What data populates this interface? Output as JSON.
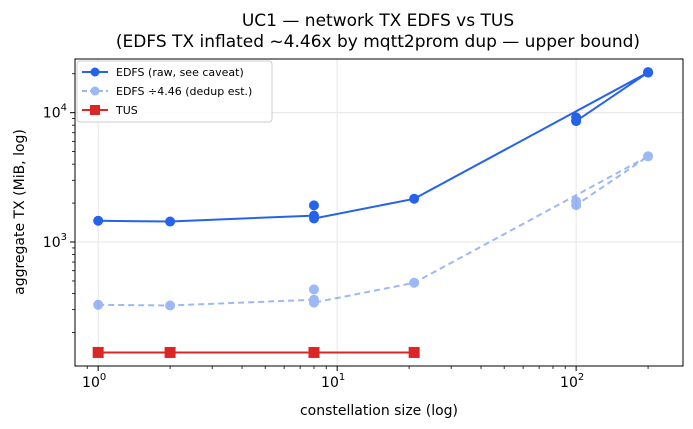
{
  "chart_data": {
    "type": "line",
    "title_line1": "UC1 — network TX EDFS vs TUS",
    "title_line2": "(EDFS TX inflated ~4.46x by mqtt2prom dup — upper bound)",
    "xlabel": "constellation size (log)",
    "ylabel": "aggregate TX (MiB, log)",
    "xscale": "log",
    "yscale": "log",
    "xlim": [
      0.8,
      280
    ],
    "ylim": [
      110,
      26000
    ],
    "grid": true,
    "legend_position": "top-left",
    "x_ticks": [
      {
        "value": 1,
        "base": "10",
        "exp": "0"
      },
      {
        "value": 10,
        "base": "10",
        "exp": "1"
      },
      {
        "value": 100,
        "base": "10",
        "exp": "2"
      }
    ],
    "y_ticks": [
      {
        "value": 1000,
        "base": "10",
        "exp": "3"
      },
      {
        "value": 10000,
        "base": "10",
        "exp": "4"
      }
    ],
    "series": [
      {
        "name": "EDFS (raw, see caveat)",
        "color": "#2563eb",
        "opacity": 1,
        "dashed": false,
        "marker": "circle",
        "x": [
          1,
          2,
          8,
          8,
          8,
          21,
          100,
          100,
          200,
          200,
          100
        ],
        "y": [
          1460,
          1440,
          1600,
          1520,
          1920,
          2160,
          9200,
          8600,
          20600,
          20400,
          8700
        ],
        "line_order": [
          [
            1,
            1460
          ],
          [
            2,
            1440
          ],
          [
            8,
            1600
          ],
          [
            8,
            1520
          ],
          [
            8,
            1920
          ],
          [
            8,
            1600
          ],
          [
            21,
            2160
          ],
          [
            200,
            20500
          ],
          [
            100,
            8600
          ]
        ],
        "line_path": [
          [
            1,
            1460
          ],
          [
            2,
            1440
          ],
          [
            8,
            1600
          ],
          [
            8,
            1520
          ],
          [
            21,
            2160
          ],
          [
            200,
            20500
          ],
          [
            100,
            8600
          ]
        ]
      },
      {
        "name": "EDFS ÷4.46 (dedup est.)",
        "color": "#2563eb",
        "opacity": 0.45,
        "dashed": true,
        "marker": "circle",
        "x": [
          1,
          2,
          8,
          8,
          8,
          21,
          100,
          100,
          200
        ],
        "y": [
          327,
          323,
          358,
          340,
          430,
          484,
          2060,
          1930,
          4600
        ],
        "line_path": [
          [
            1,
            327
          ],
          [
            2,
            323
          ],
          [
            8,
            358
          ],
          [
            8,
            340
          ],
          [
            21,
            484
          ],
          [
            200,
            4600
          ],
          [
            100,
            1930
          ]
        ]
      },
      {
        "name": "TUS",
        "color": "#dc2626",
        "opacity": 1,
        "dashed": false,
        "marker": "square",
        "x": [
          1,
          2,
          8,
          21
        ],
        "y": [
          140,
          140,
          140,
          140
        ],
        "line_path": [
          [
            1,
            140
          ],
          [
            2,
            140
          ],
          [
            8,
            140
          ],
          [
            21,
            140
          ]
        ]
      }
    ]
  }
}
